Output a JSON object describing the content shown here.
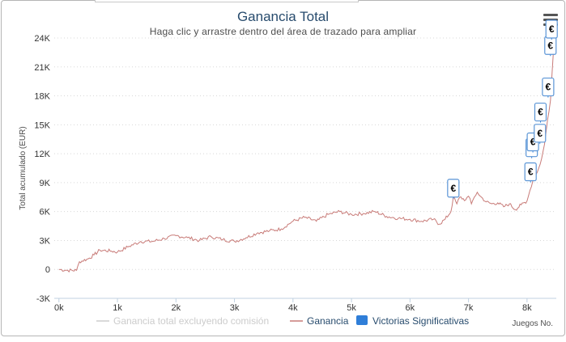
{
  "chart": {
    "title": "Ganancia Total",
    "subtitle": "Haga clic y arrastre dentro del área de trazado para ampliar",
    "menu_icon": "hamburger-menu-icon"
  },
  "chart_data": {
    "type": "line",
    "title": "Ganancia Total",
    "subtitle": "Haga clic y arrastre dentro del área de trazado para ampliar",
    "xlabel": "Juegos No.",
    "ylabel": "Total acumulado (EUR)",
    "xlim": [
      -80,
      8500
    ],
    "ylim": [
      -3000,
      24000
    ],
    "x_ticks": [
      0,
      1000,
      2000,
      3000,
      4000,
      5000,
      6000,
      7000,
      8000
    ],
    "x_tick_labels": [
      "0k",
      "1k",
      "2k",
      "3k",
      "4k",
      "5k",
      "6k",
      "7k",
      "8k"
    ],
    "y_ticks": [
      -3000,
      0,
      3000,
      6000,
      9000,
      12000,
      15000,
      18000,
      21000,
      24000
    ],
    "y_tick_labels": [
      "-3K",
      "0",
      "3K",
      "6K",
      "9K",
      "12K",
      "15K",
      "18K",
      "21K",
      "24K"
    ],
    "grid": "horizontal dotted",
    "legend_position": "bottom-center",
    "legend": [
      {
        "name": "Ganancia total excluyendo comisión",
        "hidden": true,
        "color": "#cccccc"
      },
      {
        "name": "Ganancia",
        "hidden": false,
        "color": "#c87b78"
      },
      {
        "name": "Victorias Significativas",
        "hidden": false,
        "color": "#2f7ed8"
      }
    ],
    "series": [
      {
        "name": "Ganancia",
        "color": "#c87b78",
        "points": [
          [
            0,
            0
          ],
          [
            150,
            -100
          ],
          [
            300,
            -100
          ],
          [
            350,
            800
          ],
          [
            500,
            1100
          ],
          [
            600,
            1500
          ],
          [
            700,
            2000
          ],
          [
            900,
            1900
          ],
          [
            1000,
            1800
          ],
          [
            1200,
            2400
          ],
          [
            1400,
            2900
          ],
          [
            1600,
            2900
          ],
          [
            1800,
            3200
          ],
          [
            2000,
            3500
          ],
          [
            2200,
            3300
          ],
          [
            2400,
            3000
          ],
          [
            2600,
            3400
          ],
          [
            2800,
            3100
          ],
          [
            3000,
            2900
          ],
          [
            3200,
            3300
          ],
          [
            3400,
            3800
          ],
          [
            3600,
            4000
          ],
          [
            3800,
            4200
          ],
          [
            4000,
            5000
          ],
          [
            4200,
            5400
          ],
          [
            4400,
            5000
          ],
          [
            4600,
            5700
          ],
          [
            4800,
            6000
          ],
          [
            5000,
            5700
          ],
          [
            5200,
            5800
          ],
          [
            5400,
            6000
          ],
          [
            5600,
            5500
          ],
          [
            5800,
            5300
          ],
          [
            6000,
            5200
          ],
          [
            6200,
            5000
          ],
          [
            6400,
            5200
          ],
          [
            6500,
            4700
          ],
          [
            6600,
            5200
          ],
          [
            6700,
            6000
          ],
          [
            6740,
            7500
          ],
          [
            6800,
            6800
          ],
          [
            6850,
            7500
          ],
          [
            6950,
            7200
          ],
          [
            7000,
            7600
          ],
          [
            7050,
            6800
          ],
          [
            7100,
            7500
          ],
          [
            7150,
            8000
          ],
          [
            7200,
            7600
          ],
          [
            7300,
            7000
          ],
          [
            7400,
            6800
          ],
          [
            7500,
            6900
          ],
          [
            7600,
            6500
          ],
          [
            7700,
            6800
          ],
          [
            7800,
            6200
          ],
          [
            7900,
            6700
          ],
          [
            8000,
            7100
          ],
          [
            8050,
            8200
          ],
          [
            8100,
            9200
          ],
          [
            8150,
            9800
          ],
          [
            8200,
            10500
          ],
          [
            8250,
            11500
          ],
          [
            8300,
            13000
          ],
          [
            8350,
            15500
          ],
          [
            8400,
            17500
          ],
          [
            8430,
            20500
          ],
          [
            8450,
            22500
          ],
          [
            8480,
            24000
          ]
        ]
      }
    ],
    "significant_wins": {
      "name": "Victorias Significativas",
      "marker_text": "€",
      "points": [
        [
          6740,
          7500
        ],
        [
          8060,
          9200
        ],
        [
          8080,
          11700
        ],
        [
          8100,
          12300
        ],
        [
          8220,
          13200
        ],
        [
          8230,
          15400
        ],
        [
          8360,
          18000
        ],
        [
          8400,
          22300
        ],
        [
          8420,
          24000
        ]
      ]
    }
  }
}
